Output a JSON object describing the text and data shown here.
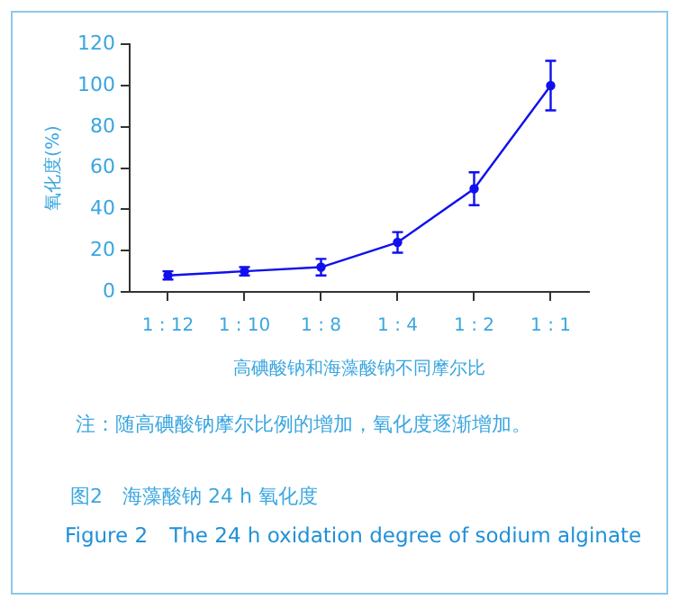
{
  "chart_data": {
    "type": "line",
    "title": "图2　海藻酸钠 24 h 氧化度",
    "subtitle": "Figure 2　The 24 h oxidation degree of sodium alginate",
    "xlabel": "高碘酸钠和海藻酸钠不同摩尔比",
    "ylabel": "氧化度(%)",
    "annotations": [
      "注：随高碘酸钠摩尔比例的增加，氧化度逐渐增加。"
    ],
    "categories": [
      "1 : 12",
      "1 : 10",
      "1 : 8",
      "1 : 4",
      "1 : 2",
      "1 : 1"
    ],
    "series": [
      {
        "color": "#1010ee",
        "values": [
          8,
          10,
          12,
          24,
          50,
          100
        ],
        "errors": [
          2,
          2,
          4,
          5,
          8,
          12
        ]
      }
    ],
    "ylim": [
      0,
      120
    ],
    "yticks": [
      0,
      20,
      40,
      60,
      80,
      100,
      120
    ],
    "grid": false,
    "legend": false,
    "marker": "circle",
    "line_style": "solid"
  }
}
